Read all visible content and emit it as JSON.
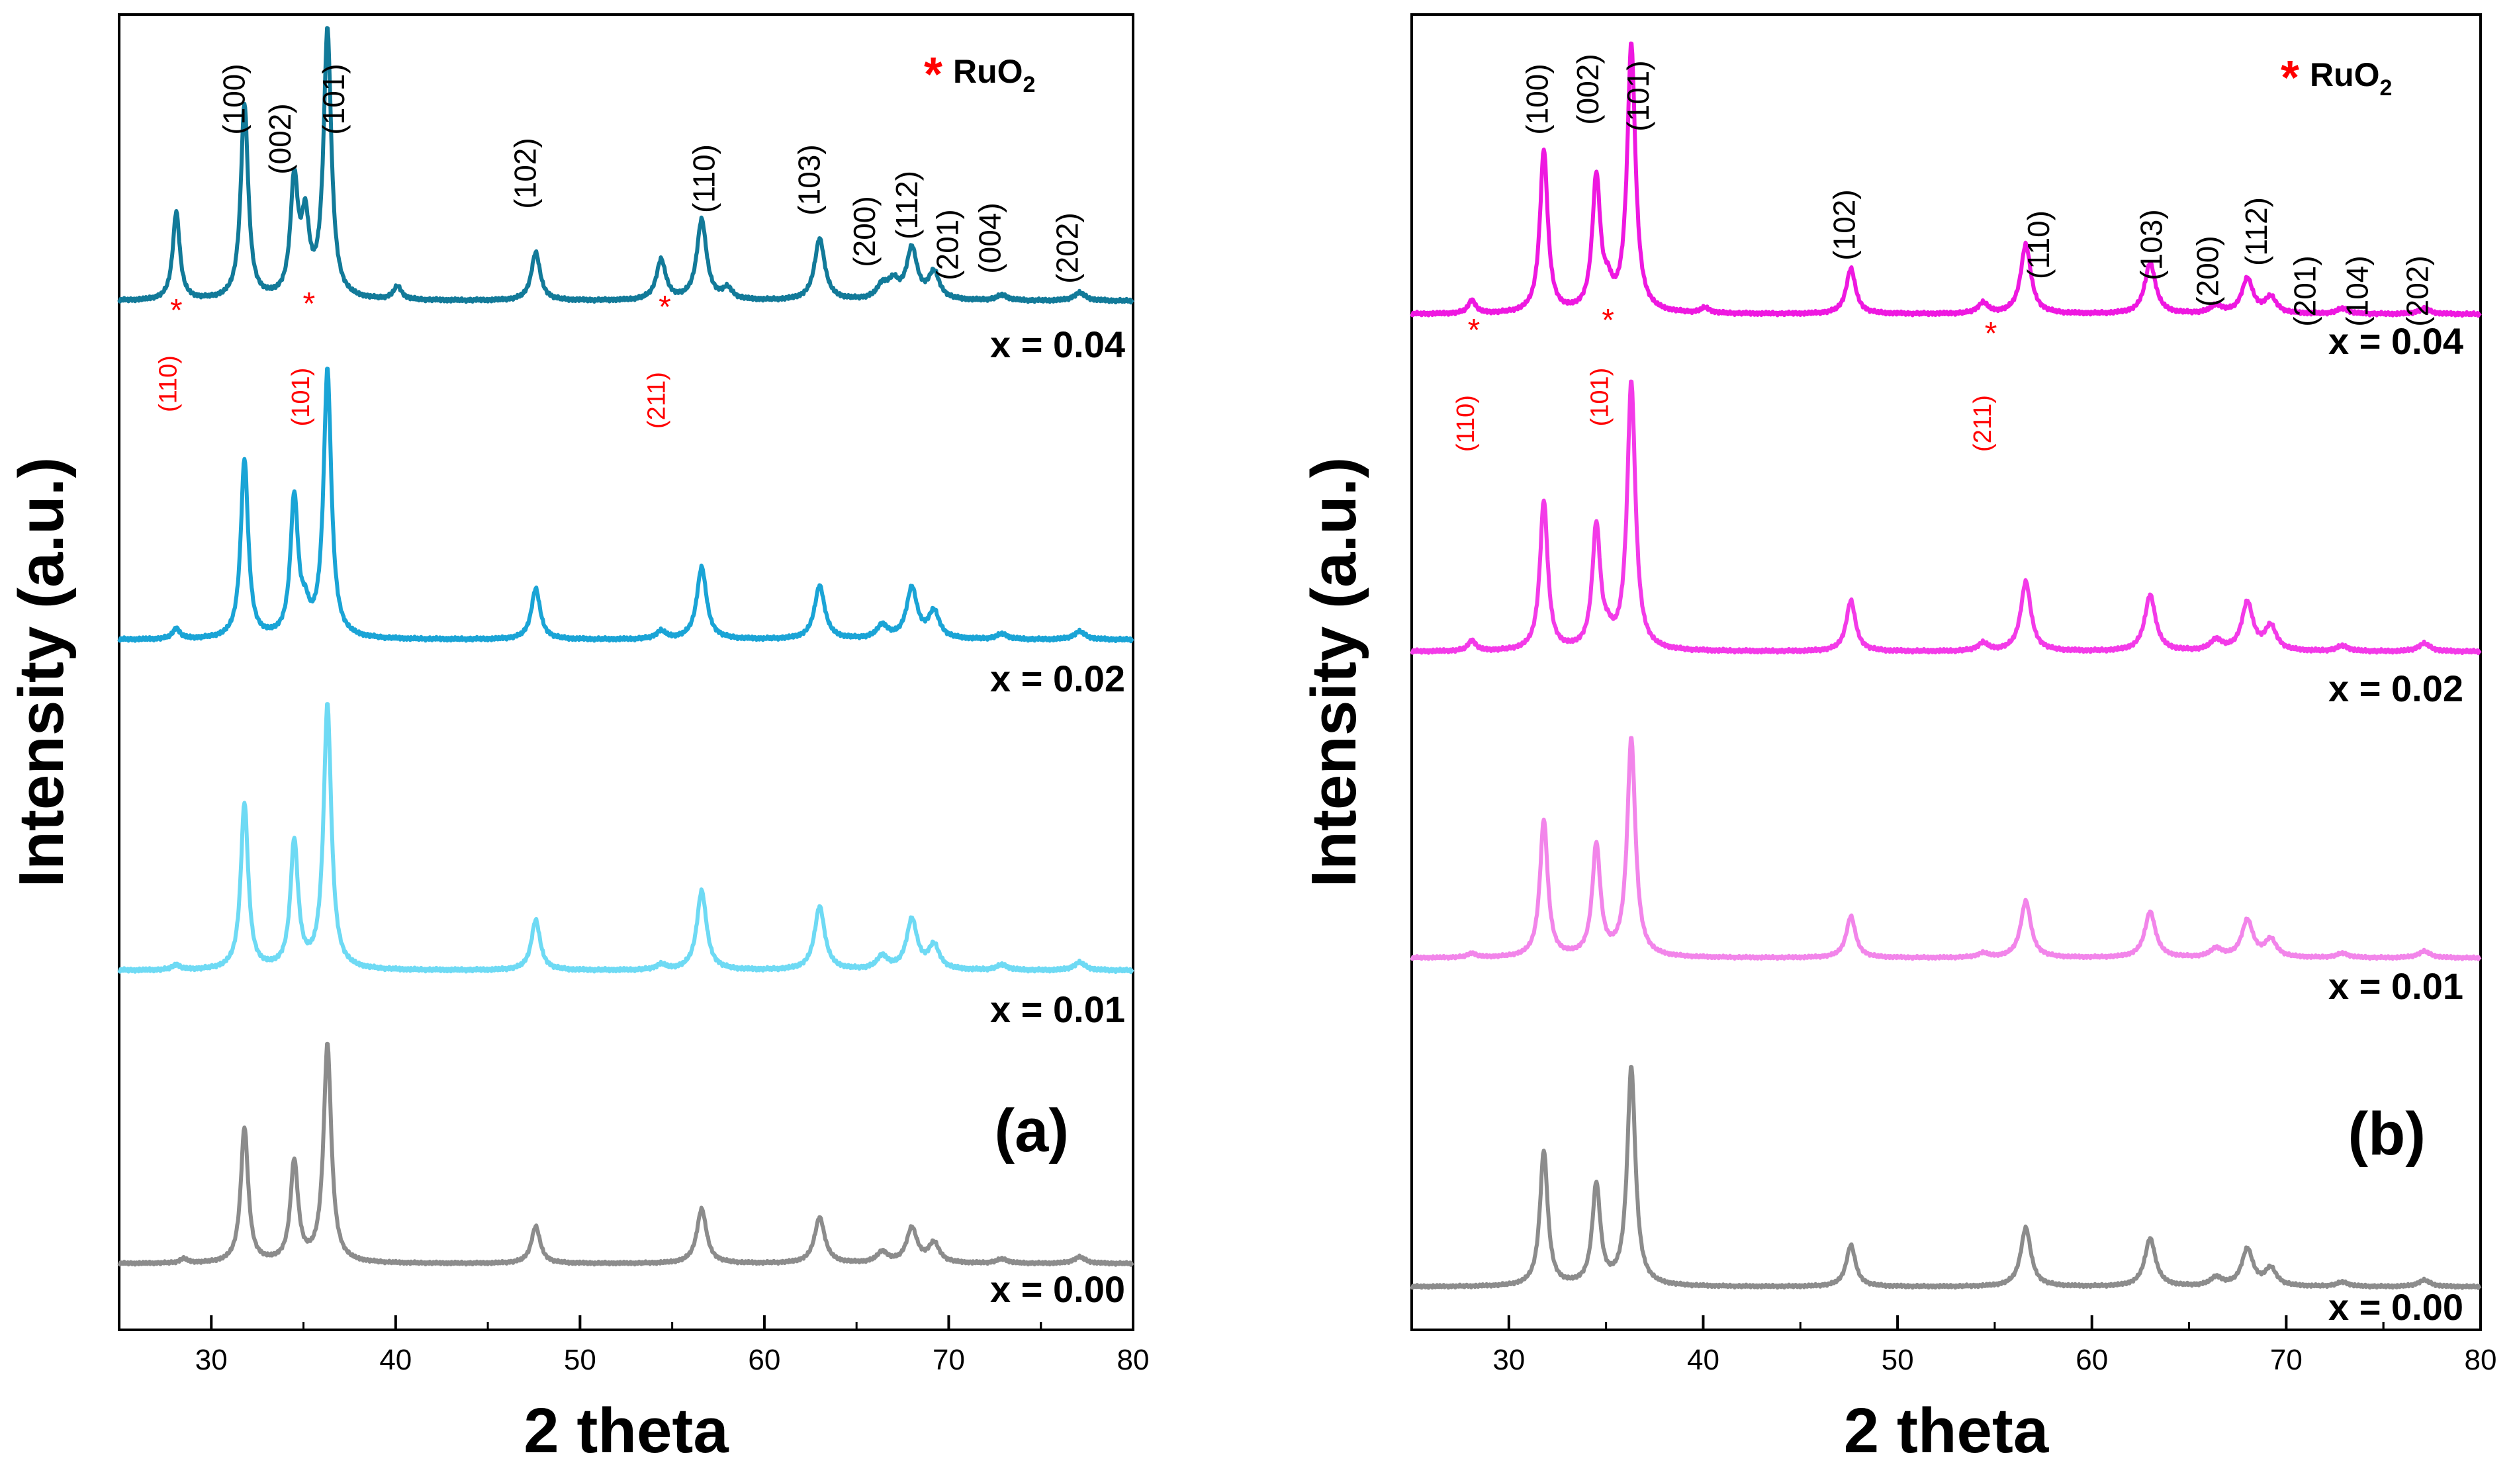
{
  "chart_data": [
    {
      "type": "line",
      "panel_label": "(a)",
      "xlabel": "2 theta",
      "ylabel": "Intensity (a.u.)",
      "xlim": [
        25,
        80
      ],
      "xticks": [
        "30",
        "40",
        "50",
        "60",
        "70",
        "80"
      ],
      "legend": {
        "marker": "*",
        "text": "RuO",
        "sub": "2"
      },
      "series": [
        {
          "name": "x = 0.04",
          "color": "#127a99",
          "yr": [
            10.0,
            1.0
          ],
          "offset": 3.0,
          "peaks": [
            [
              28.1,
              0.33
            ],
            [
              31.8,
              0.73
            ],
            [
              34.5,
              0.43
            ],
            [
              35.1,
              0.27
            ],
            [
              36.3,
              1.0
            ],
            [
              40.1,
              0.05
            ],
            [
              47.6,
              0.18
            ],
            [
              54.4,
              0.15
            ],
            [
              56.6,
              0.3
            ],
            [
              58.0,
              0.04
            ],
            [
              63.0,
              0.23
            ],
            [
              66.4,
              0.05
            ],
            [
              67.0,
              0.06
            ],
            [
              68.0,
              0.19
            ],
            [
              69.2,
              0.1
            ],
            [
              72.9,
              0.02
            ],
            [
              77.1,
              0.03
            ]
          ]
        },
        {
          "name": "x = 0.02",
          "color": "#1aa4d6",
          "yr": [
            10.0,
            1.0
          ],
          "offset": 2.0,
          "peaks": [
            [
              28.1,
              0.04
            ],
            [
              31.8,
              0.67
            ],
            [
              34.5,
              0.52
            ],
            [
              35.1,
              0.08
            ],
            [
              36.3,
              1.0
            ],
            [
              47.6,
              0.19
            ],
            [
              54.4,
              0.03
            ],
            [
              56.6,
              0.27
            ],
            [
              63.0,
              0.2
            ],
            [
              66.4,
              0.05
            ],
            [
              68.0,
              0.19
            ],
            [
              69.2,
              0.1
            ],
            [
              72.9,
              0.02
            ],
            [
              77.1,
              0.03
            ]
          ]
        },
        {
          "name": "x = 0.01",
          "color": "#6edaf4",
          "yr": [
            10.0,
            1.0
          ],
          "offset": 1.0,
          "peaks": [
            [
              28.1,
              0.02
            ],
            [
              31.8,
              0.63
            ],
            [
              34.5,
              0.48
            ],
            [
              36.3,
              1.0
            ],
            [
              47.6,
              0.19
            ],
            [
              54.4,
              0.02
            ],
            [
              56.6,
              0.3
            ],
            [
              63.0,
              0.24
            ],
            [
              66.4,
              0.05
            ],
            [
              68.0,
              0.19
            ],
            [
              69.2,
              0.09
            ],
            [
              72.9,
              0.02
            ],
            [
              77.1,
              0.03
            ]
          ]
        },
        {
          "name": "x = 0.00",
          "color": "#8c8c8c",
          "yr": [
            10.0,
            1.0
          ],
          "offset": 0.0,
          "peaks": [
            [
              28.5,
              0.02
            ],
            [
              31.8,
              0.62
            ],
            [
              34.5,
              0.46
            ],
            [
              36.3,
              1.0
            ],
            [
              47.6,
              0.17
            ],
            [
              56.6,
              0.25
            ],
            [
              63.0,
              0.21
            ],
            [
              66.4,
              0.05
            ],
            [
              68.0,
              0.16
            ],
            [
              69.2,
              0.09
            ],
            [
              72.9,
              0.02
            ],
            [
              77.1,
              0.03
            ]
          ]
        }
      ],
      "peak_labels": [
        {
          "x": 31.8,
          "text": "(100)"
        },
        {
          "x": 34.3,
          "text": "(002)"
        },
        {
          "x": 37.2,
          "text": "(101)"
        },
        {
          "x": 47.6,
          "text": "(102)"
        },
        {
          "x": 57.3,
          "text": "(110)"
        },
        {
          "x": 63.0,
          "text": "(103)"
        },
        {
          "x": 66.0,
          "text": "(200)"
        },
        {
          "x": 68.3,
          "text": "(112)"
        },
        {
          "x": 70.5,
          "text": "(201)"
        },
        {
          "x": 72.8,
          "text": "(004)"
        },
        {
          "x": 77.0,
          "text": "(202)"
        }
      ],
      "ruo2_labels": [
        {
          "x": 28.1,
          "text": "(110)"
        },
        {
          "x": 35.3,
          "text": "(101)"
        },
        {
          "x": 54.6,
          "text": "(211)"
        }
      ]
    },
    {
      "type": "line",
      "panel_label": "(b)",
      "xlabel": "2 theta",
      "ylabel": "Intensity (a.u.)",
      "xlim": [
        25,
        80
      ],
      "xticks": [
        "30",
        "40",
        "50",
        "60",
        "70",
        "80"
      ],
      "legend": {
        "marker": "*",
        "text": "RuO",
        "sub": "2"
      },
      "series": [
        {
          "name": "x = 0.04",
          "color": "#ee18e0",
          "yr": [
            10.0,
            1.0
          ],
          "offset": 3.0,
          "peaks": [
            [
              28.1,
              0.05
            ],
            [
              31.8,
              0.61
            ],
            [
              34.5,
              0.5
            ],
            [
              35.1,
              0.07
            ],
            [
              36.3,
              1.0
            ],
            [
              40.1,
              0.02
            ],
            [
              47.6,
              0.17
            ],
            [
              54.4,
              0.04
            ],
            [
              56.6,
              0.26
            ],
            [
              63.0,
              0.19
            ],
            [
              66.4,
              0.03
            ],
            [
              68.0,
              0.13
            ],
            [
              69.2,
              0.06
            ],
            [
              72.9,
              0.02
            ],
            [
              77.1,
              0.02
            ]
          ]
        },
        {
          "name": "x = 0.02",
          "color": "#f33ae8",
          "yr": [
            10.0,
            1.0
          ],
          "offset": 2.0,
          "peaks": [
            [
              28.1,
              0.04
            ],
            [
              31.8,
              0.56
            ],
            [
              34.5,
              0.46
            ],
            [
              35.1,
              0.04
            ],
            [
              36.3,
              1.0
            ],
            [
              47.6,
              0.19
            ],
            [
              54.4,
              0.03
            ],
            [
              56.6,
              0.26
            ],
            [
              63.0,
              0.21
            ],
            [
              66.4,
              0.04
            ],
            [
              68.0,
              0.18
            ],
            [
              69.2,
              0.09
            ],
            [
              72.9,
              0.02
            ],
            [
              77.1,
              0.03
            ]
          ]
        },
        {
          "name": "x = 0.01",
          "color": "#f285ea",
          "yr": [
            10.0,
            1.0
          ],
          "offset": 1.0,
          "peaks": [
            [
              28.1,
              0.02
            ],
            [
              31.8,
              0.63
            ],
            [
              34.5,
              0.51
            ],
            [
              36.3,
              1.0
            ],
            [
              47.6,
              0.19
            ],
            [
              54.4,
              0.02
            ],
            [
              56.6,
              0.26
            ],
            [
              63.0,
              0.21
            ],
            [
              66.4,
              0.04
            ],
            [
              68.0,
              0.17
            ],
            [
              69.2,
              0.08
            ],
            [
              72.9,
              0.02
            ],
            [
              77.1,
              0.03
            ]
          ]
        },
        {
          "name": "x = 0.00",
          "color": "#8c8c8c",
          "yr": [
            10.0,
            1.0
          ],
          "offset": 0.0,
          "peaks": [
            [
              31.8,
              0.62
            ],
            [
              34.5,
              0.46
            ],
            [
              36.3,
              1.0
            ],
            [
              47.6,
              0.19
            ],
            [
              56.6,
              0.27
            ],
            [
              63.0,
              0.22
            ],
            [
              66.4,
              0.04
            ],
            [
              68.0,
              0.17
            ],
            [
              69.2,
              0.08
            ],
            [
              72.9,
              0.02
            ],
            [
              77.1,
              0.03
            ]
          ]
        }
      ],
      "peak_labels": [
        {
          "x": 32.0,
          "text": "(100)"
        },
        {
          "x": 34.6,
          "text": "(002)"
        },
        {
          "x": 37.2,
          "text": "(101)"
        },
        {
          "x": 47.8,
          "text": "(102)"
        },
        {
          "x": 57.8,
          "text": "(110)"
        },
        {
          "x": 63.6,
          "text": "(103)"
        },
        {
          "x": 66.5,
          "text": "(200)"
        },
        {
          "x": 69.0,
          "text": "(112)"
        },
        {
          "x": 71.5,
          "text": "(201)"
        },
        {
          "x": 74.2,
          "text": "(104)"
        },
        {
          "x": 77.3,
          "text": "(202)"
        }
      ],
      "ruo2_labels": [
        {
          "x": 28.2,
          "text": "(110)"
        },
        {
          "x": 35.1,
          "text": "(101)"
        },
        {
          "x": 54.8,
          "text": "(211)"
        }
      ]
    }
  ]
}
